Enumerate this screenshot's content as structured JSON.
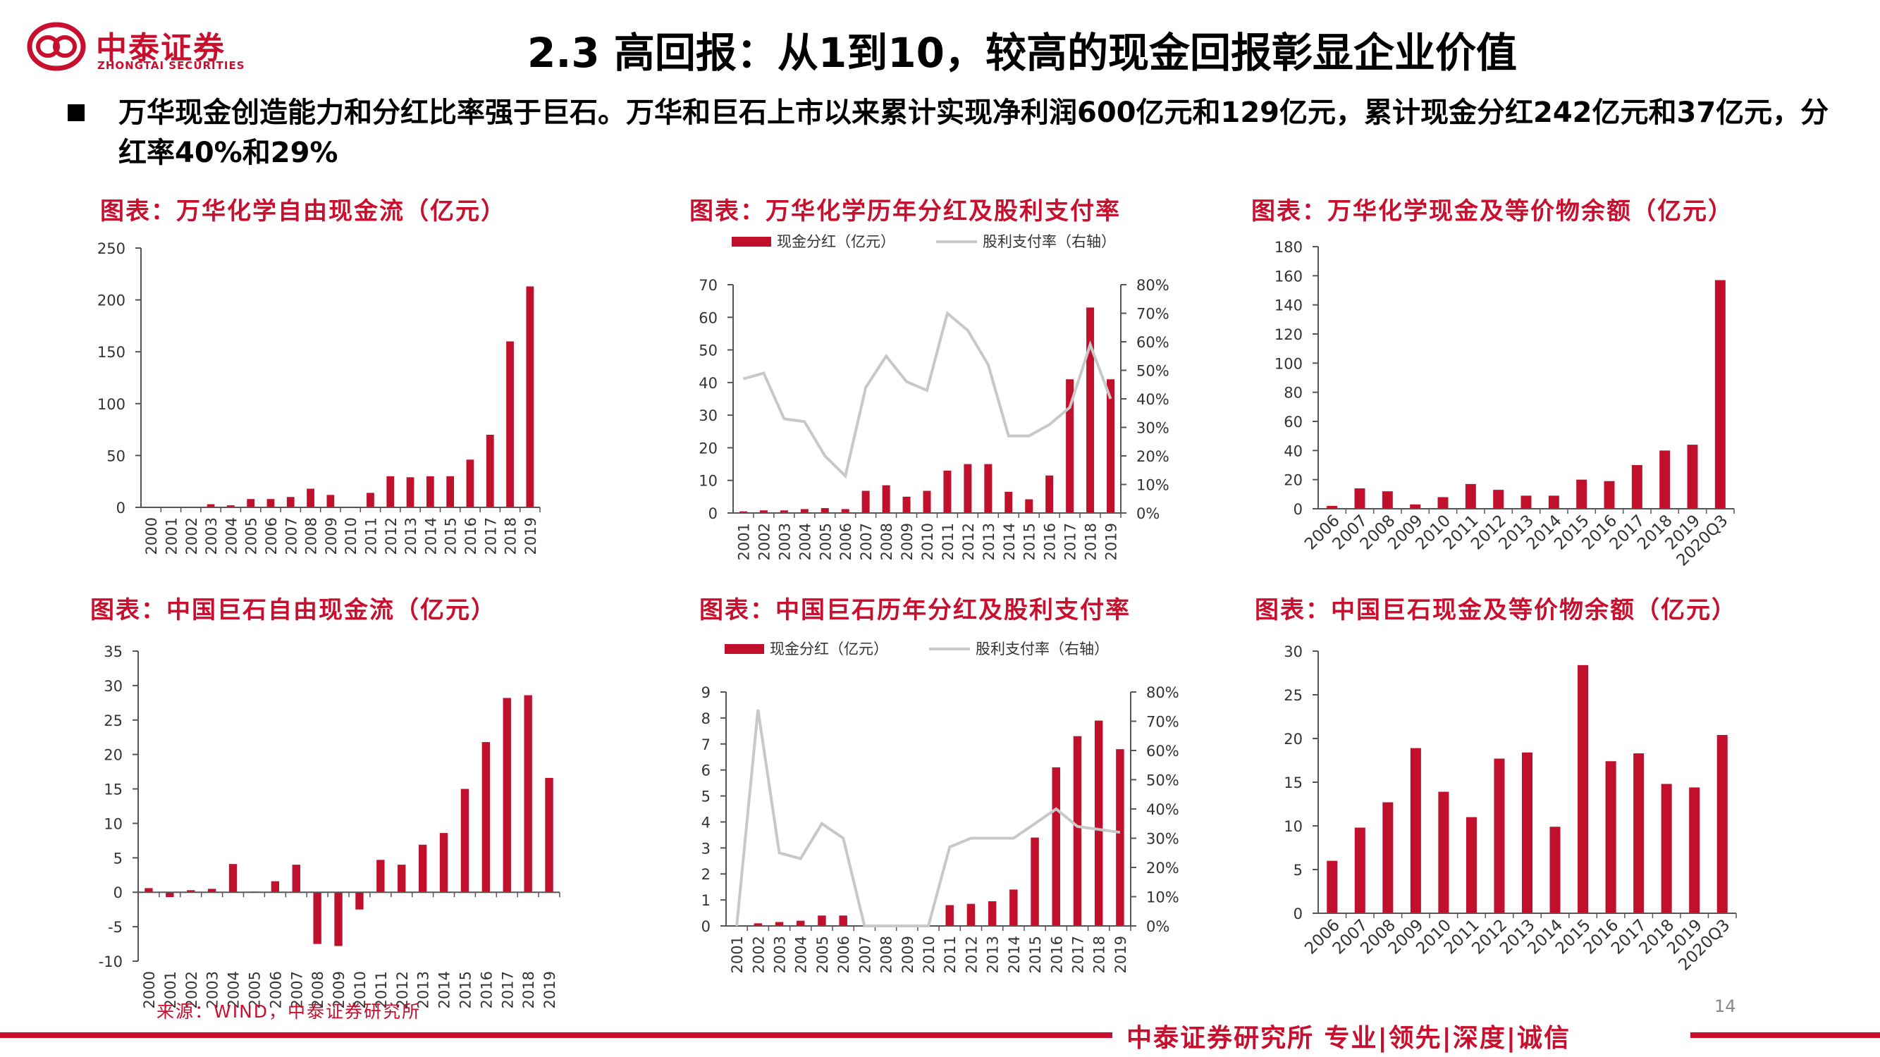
{
  "header": {
    "logo_cn": "中泰证券",
    "logo_en": "ZHONGTAI SECURITIES",
    "title": "2.3 高回报：从1到10，较高的现金回报彰显企业价值",
    "brand_color": "#c8102e"
  },
  "bullet": "万华现金创造能力和分红比率强于巨石。万华和巨石上市以来累计实现净利润600亿元和129亿元，累计现金分红242亿元和37亿元，分红率40%和29%",
  "footer": {
    "source": "来源：WIND，中泰证券研究所",
    "page": "14",
    "slogan": "中泰证券研究所 专业|领先|深度|诚信"
  },
  "chart_data": [
    {
      "id": "c1",
      "type": "bar",
      "title": "图表：万华化学自由现金流（亿元）",
      "categories": [
        "2000",
        "2001",
        "2002",
        "2003",
        "2004",
        "2005",
        "2006",
        "2007",
        "2008",
        "2009",
        "2010",
        "2011",
        "2012",
        "2013",
        "2014",
        "2015",
        "2016",
        "2017",
        "2018",
        "2019"
      ],
      "values": [
        0,
        0,
        0,
        3,
        2,
        8,
        8,
        10,
        18,
        12,
        0,
        14,
        30,
        29,
        30,
        30,
        46,
        70,
        160,
        213
      ],
      "ylim": [
        0,
        250
      ],
      "yticks": [
        "0",
        "50",
        "100",
        "150",
        "200",
        "250"
      ]
    },
    {
      "id": "c2",
      "type": "bar+line",
      "title": "图表：万华化学历年分红及股利支付率",
      "categories": [
        "2001",
        "2002",
        "2003",
        "2004",
        "2005",
        "2006",
        "2007",
        "2008",
        "2009",
        "2010",
        "2011",
        "2012",
        "2013",
        "2014",
        "2015",
        "2016",
        "2017",
        "2018",
        "2019"
      ],
      "series": [
        {
          "name": "现金分红（亿元）",
          "type": "bar",
          "axis": "left",
          "values": [
            0.5,
            0.8,
            0.8,
            1.2,
            1.5,
            1.2,
            6.8,
            8.5,
            5,
            6.8,
            13,
            15,
            15,
            6.5,
            4.2,
            11.5,
            41,
            63,
            41
          ]
        },
        {
          "name": "股利支付率（右轴）",
          "type": "line",
          "axis": "right",
          "values": [
            0.47,
            0.49,
            0.33,
            0.32,
            0.2,
            0.13,
            0.44,
            0.55,
            0.46,
            0.43,
            0.7,
            0.64,
            0.52,
            0.27,
            0.27,
            0.31,
            0.37,
            0.59,
            0.4
          ]
        }
      ],
      "ylim": [
        0,
        70
      ],
      "yticks": [
        "0",
        "10",
        "20",
        "30",
        "40",
        "50",
        "60",
        "70"
      ],
      "y2lim": [
        0,
        0.8
      ],
      "y2ticks": [
        "0%",
        "10%",
        "20%",
        "30%",
        "40%",
        "50%",
        "60%",
        "70%",
        "80%"
      ],
      "legend": "top"
    },
    {
      "id": "c3",
      "type": "bar",
      "title": "图表：万华化学现金及等价物余额（亿元）",
      "categories": [
        "2006",
        "2007",
        "2008",
        "2009",
        "2010",
        "2011",
        "2012",
        "2013",
        "2014",
        "2015",
        "2016",
        "2017",
        "2018",
        "2019",
        "2020Q3"
      ],
      "values": [
        2,
        14,
        12,
        3,
        8,
        17,
        13,
        9,
        9,
        20,
        19,
        30,
        40,
        44,
        157
      ],
      "ylim": [
        0,
        180
      ],
      "yticks": [
        "0",
        "20",
        "40",
        "60",
        "80",
        "100",
        "120",
        "140",
        "160",
        "180"
      ]
    },
    {
      "id": "c4",
      "type": "bar",
      "title": "图表：中国巨石自由现金流（亿元）",
      "categories": [
        "2000",
        "2001",
        "2002",
        "2003",
        "2004",
        "2005",
        "2006",
        "2007",
        "2008",
        "2009",
        "2010",
        "2011",
        "2012",
        "2013",
        "2014",
        "2015",
        "2016",
        "2017",
        "2018",
        "2019"
      ],
      "values": [
        0.6,
        -0.7,
        0.3,
        0.5,
        4.1,
        0.1,
        1.6,
        4.0,
        -7.5,
        -7.8,
        -2.5,
        4.7,
        4.0,
        6.9,
        8.6,
        15,
        21.8,
        28.2,
        28.6,
        16.6
      ],
      "ylim": [
        -10,
        35
      ],
      "yticks": [
        "-10",
        "-5",
        "0",
        "5",
        "10",
        "15",
        "20",
        "25",
        "30",
        "35"
      ]
    },
    {
      "id": "c5",
      "type": "bar+line",
      "title": "图表：中国巨石历年分红及股利支付率",
      "categories": [
        "2001",
        "2002",
        "2003",
        "2004",
        "2005",
        "2006",
        "2007",
        "2008",
        "2009",
        "2010",
        "2011",
        "2012",
        "2013",
        "2014",
        "2015",
        "2016",
        "2017",
        "2018",
        "2019"
      ],
      "series": [
        {
          "name": "现金分红（亿元）",
          "type": "bar",
          "axis": "left",
          "values": [
            0,
            0.1,
            0.15,
            0.2,
            0.4,
            0.4,
            0,
            0,
            0,
            0,
            0.8,
            0.85,
            0.95,
            1.4,
            3.4,
            6.1,
            7.3,
            7.9,
            6.8
          ]
        },
        {
          "name": "股利支付率（右轴）",
          "type": "line",
          "axis": "right",
          "values": [
            0,
            0.74,
            0.25,
            0.23,
            0.35,
            0.3,
            0,
            0,
            0,
            0,
            0.27,
            0.3,
            0.3,
            0.3,
            0.35,
            0.4,
            0.34,
            0.33,
            0.32
          ]
        }
      ],
      "ylim": [
        0,
        9
      ],
      "yticks": [
        "0",
        "1",
        "2",
        "3",
        "4",
        "5",
        "6",
        "7",
        "8",
        "9"
      ],
      "y2lim": [
        0,
        0.8
      ],
      "y2ticks": [
        "0%",
        "10%",
        "20%",
        "30%",
        "40%",
        "50%",
        "60%",
        "70%",
        "80%"
      ],
      "legend": "top"
    },
    {
      "id": "c6",
      "type": "bar",
      "title": "图表：中国巨石现金及等价物余额（亿元）",
      "categories": [
        "2006",
        "2007",
        "2008",
        "2009",
        "2010",
        "2011",
        "2012",
        "2013",
        "2014",
        "2015",
        "2016",
        "2017",
        "2018",
        "2019",
        "2020Q3"
      ],
      "values": [
        6,
        9.8,
        12.7,
        18.9,
        13.9,
        11,
        17.7,
        18.4,
        9.9,
        28.4,
        17.4,
        18.3,
        14.8,
        14.4,
        20.4
      ],
      "ylim": [
        0,
        30
      ],
      "yticks": [
        "0",
        "5",
        "10",
        "15",
        "20",
        "25",
        "30"
      ]
    }
  ]
}
